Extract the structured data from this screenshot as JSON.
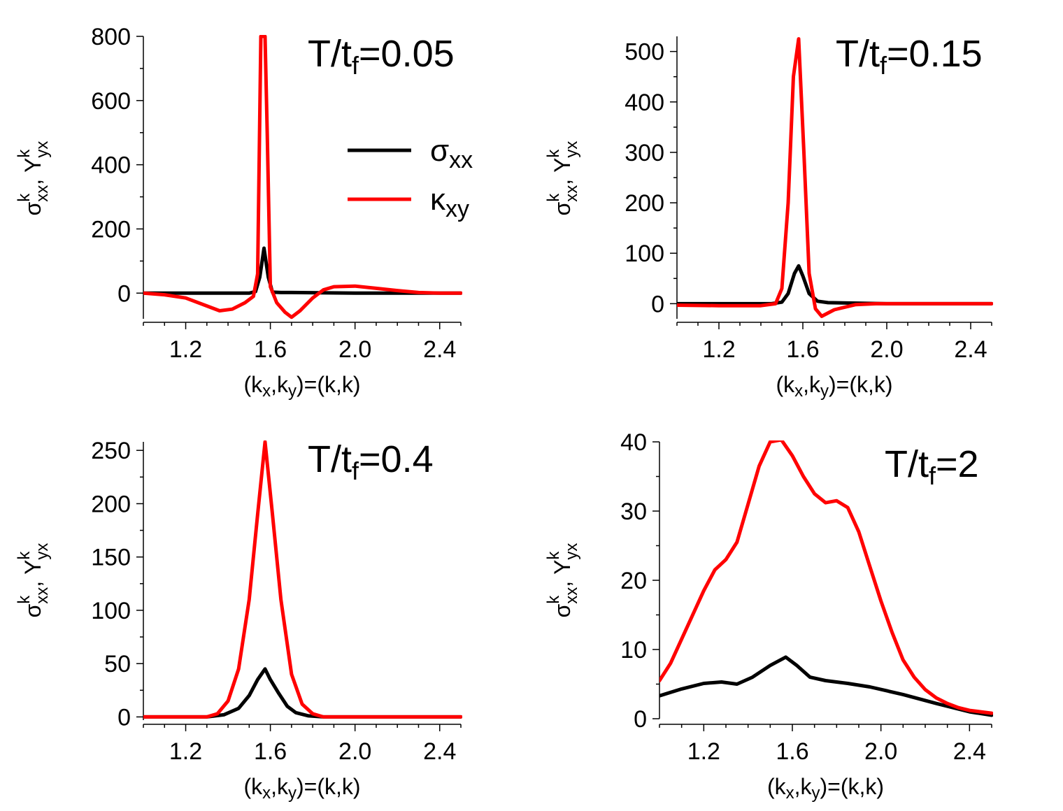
{
  "chart_data": [
    {
      "type": "line",
      "title": "T/t_f=0.05",
      "title_main": "T/t",
      "title_sub": "f",
      "title_value": "=0.05",
      "xlabel": "(k_x,k_y)=(k,k)",
      "ylabel": "σ^k_xx, Υ^k_yx",
      "xlim": [
        1.0,
        2.5
      ],
      "ylim": [
        -80,
        800
      ],
      "xticks": [
        1.2,
        1.6,
        2.0,
        2.4
      ],
      "xtick_labels": [
        "1.2",
        "1.6",
        "2.0",
        "2.4"
      ],
      "yticks": [
        0,
        200,
        400,
        600,
        800
      ],
      "ytick_labels": [
        "0",
        "200",
        "400",
        "600",
        "800"
      ],
      "legend": {
        "placement": "center-right",
        "entries": [
          {
            "main": "σ",
            "sub": "xx",
            "color": "#000000"
          },
          {
            "main": "κ",
            "sub": "xy",
            "color": "#ff0000"
          }
        ]
      },
      "series": [
        {
          "name": "σ_xx",
          "color": "#000000",
          "x": [
            1.0,
            1.3,
            1.5,
            1.53,
            1.55,
            1.57,
            1.59,
            1.61,
            1.65,
            1.7,
            2.0,
            2.5
          ],
          "y": [
            0,
            0,
            0,
            5,
            50,
            140,
            50,
            3,
            2,
            2,
            0,
            0
          ]
        },
        {
          "name": "κ_xy",
          "color": "#ff0000",
          "x": [
            1.0,
            1.1,
            1.2,
            1.3,
            1.36,
            1.42,
            1.48,
            1.52,
            1.54,
            1.555,
            1.565,
            1.575,
            1.585,
            1.6,
            1.63,
            1.67,
            1.7,
            1.74,
            1.8,
            1.85,
            1.9,
            2.0,
            2.1,
            2.2,
            2.3,
            2.4,
            2.5
          ],
          "y": [
            0,
            -5,
            -15,
            -40,
            -55,
            -50,
            -30,
            -10,
            60,
            800,
            800,
            800,
            500,
            20,
            -30,
            -60,
            -75,
            -55,
            -15,
            10,
            20,
            22,
            15,
            8,
            2,
            0,
            0
          ]
        }
      ]
    },
    {
      "type": "line",
      "title": "T/t_f=0.15",
      "title_main": "T/t",
      "title_sub": "f",
      "title_value": "=0.15",
      "xlabel": "(k_x,k_y)=(k,k)",
      "ylabel": "σ^k_xx, Υ^k_yx",
      "xlim": [
        1.0,
        2.5
      ],
      "ylim": [
        -30,
        530
      ],
      "xticks": [
        1.2,
        1.6,
        2.0,
        2.4
      ],
      "xtick_labels": [
        "1.2",
        "1.6",
        "2.0",
        "2.4"
      ],
      "yticks": [
        0,
        100,
        200,
        300,
        400,
        500
      ],
      "ytick_labels": [
        "0",
        "100",
        "200",
        "300",
        "400",
        "500"
      ],
      "series": [
        {
          "name": "σ_xx",
          "color": "#000000",
          "x": [
            1.0,
            1.3,
            1.45,
            1.5,
            1.53,
            1.56,
            1.58,
            1.6,
            1.63,
            1.67,
            1.72,
            2.0,
            2.5
          ],
          "y": [
            0,
            0,
            0,
            3,
            20,
            60,
            75,
            55,
            20,
            5,
            2,
            0,
            0
          ]
        },
        {
          "name": "κ_xy",
          "color": "#ff0000",
          "x": [
            1.0,
            1.2,
            1.4,
            1.47,
            1.5,
            1.53,
            1.555,
            1.58,
            1.605,
            1.63,
            1.66,
            1.69,
            1.75,
            1.85,
            1.95,
            2.5
          ],
          "y": [
            -3,
            -4,
            -4,
            0,
            30,
            200,
            450,
            525,
            300,
            60,
            -10,
            -25,
            -12,
            -2,
            0,
            0
          ]
        }
      ]
    },
    {
      "type": "line",
      "title": "T/t_f=0.4",
      "title_main": "T/t",
      "title_sub": "f",
      "title_value": "=0.4",
      "xlabel": "(k_x,k_y)=(k,k)",
      "ylabel": "σ^k_xx, Υ^k_yx",
      "xlim": [
        1.0,
        2.5
      ],
      "ylim": [
        -3,
        258
      ],
      "xticks": [
        1.2,
        1.6,
        2.0,
        2.4
      ],
      "xtick_labels": [
        "1.2",
        "1.6",
        "2.0",
        "2.4"
      ],
      "yticks": [
        0,
        50,
        100,
        150,
        200,
        250
      ],
      "ytick_labels": [
        "0",
        "50",
        "100",
        "150",
        "200",
        "250"
      ],
      "series": [
        {
          "name": "σ_xx",
          "color": "#000000",
          "x": [
            1.0,
            1.3,
            1.38,
            1.45,
            1.5,
            1.54,
            1.575,
            1.6,
            1.64,
            1.68,
            1.72,
            1.78,
            1.85,
            2.5
          ],
          "y": [
            0,
            0,
            2,
            8,
            20,
            35,
            45,
            35,
            22,
            10,
            4,
            1,
            0,
            0
          ]
        },
        {
          "name": "κ_xy",
          "color": "#ff0000",
          "x": [
            1.0,
            1.3,
            1.35,
            1.4,
            1.45,
            1.5,
            1.54,
            1.575,
            1.61,
            1.65,
            1.7,
            1.75,
            1.8,
            1.85,
            1.9,
            2.5
          ],
          "y": [
            0,
            0,
            3,
            15,
            45,
            110,
            190,
            258,
            190,
            110,
            40,
            12,
            3,
            0,
            0,
            0
          ]
        }
      ]
    },
    {
      "type": "line",
      "title": "T/t_f=2",
      "title_main": "T/t",
      "title_sub": "f",
      "title_value": "=2",
      "xlabel": "(k_x,k_y)=(k,k)",
      "ylabel": "σ^k_xx, Υ^k_yx",
      "xlim": [
        1.0,
        2.5
      ],
      "ylim": [
        0,
        40
      ],
      "xticks": [
        1.2,
        1.6,
        2.0,
        2.4
      ],
      "xtick_labels": [
        "1.2",
        "1.6",
        "2.0",
        "2.4"
      ],
      "yticks": [
        0,
        10,
        20,
        30,
        40
      ],
      "ytick_labels": [
        "0",
        "10",
        "20",
        "30",
        "40"
      ],
      "series": [
        {
          "name": "σ_xx",
          "color": "#000000",
          "x": [
            1.0,
            1.1,
            1.2,
            1.28,
            1.35,
            1.42,
            1.5,
            1.57,
            1.62,
            1.68,
            1.75,
            1.85,
            1.95,
            2.1,
            2.25,
            2.4,
            2.5
          ],
          "y": [
            3.3,
            4.3,
            5.1,
            5.3,
            5.0,
            6.0,
            7.7,
            8.9,
            7.7,
            6.0,
            5.5,
            5.1,
            4.6,
            3.5,
            2.2,
            1.0,
            0.5
          ]
        },
        {
          "name": "κ_xy",
          "color": "#ff0000",
          "x": [
            1.0,
            1.05,
            1.1,
            1.15,
            1.2,
            1.25,
            1.3,
            1.35,
            1.4,
            1.45,
            1.5,
            1.55,
            1.6,
            1.65,
            1.7,
            1.75,
            1.8,
            1.85,
            1.9,
            1.95,
            2.0,
            2.05,
            2.1,
            2.15,
            2.2,
            2.25,
            2.3,
            2.35,
            2.4,
            2.45,
            2.5
          ],
          "y": [
            5.5,
            8.0,
            11.5,
            15.0,
            18.5,
            21.5,
            23.0,
            25.5,
            31.0,
            36.5,
            40.0,
            40.3,
            38.0,
            35.0,
            32.5,
            31.2,
            31.5,
            30.5,
            27.0,
            22.0,
            17.0,
            12.5,
            8.5,
            6.0,
            4.2,
            3.0,
            2.2,
            1.6,
            1.2,
            1.0,
            0.8
          ]
        }
      ]
    }
  ]
}
